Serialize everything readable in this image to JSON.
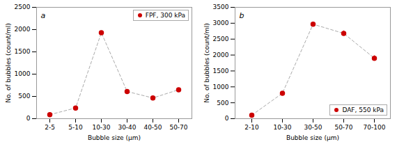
{
  "chart_data": [
    {
      "type": "line",
      "title": "a",
      "categories": [
        "2-5",
        "5-10",
        "10-30",
        "30-40",
        "40-50",
        "50-70"
      ],
      "series": [
        {
          "name": "FPF, 300 kPa",
          "color": "#cc0000",
          "marker": "o",
          "line_style": "dashed",
          "values": [
            90,
            240,
            1930,
            610,
            465,
            650
          ],
          "errors": [
            0,
            0,
            0,
            0,
            0,
            0
          ]
        }
      ],
      "color": "#aaaaaa",
      "xlabel": "Bubble size (μm)",
      "ylabel": "No. of bubbles (count/ml)",
      "ylim": [
        0,
        2500
      ],
      "yticks": [
        0,
        500,
        1000,
        1500,
        2000,
        2500
      ],
      "legend": "upper right"
    },
    {
      "type": "line",
      "title": "b",
      "categories": [
        "2-10",
        "10-30",
        "30-50",
        "50-70",
        "70-100"
      ],
      "series": [
        {
          "name": "DAF, 550 kPa",
          "color": "#cc0000",
          "marker": "o",
          "line_style": "dashed",
          "values": [
            110,
            800,
            2970,
            2680,
            1900
          ],
          "errors": [
            0,
            0,
            0,
            80,
            80
          ]
        }
      ],
      "color": "#aaaaaa",
      "xlabel": "Bubble size (μm)",
      "ylabel": "No. of bubbles (count/ml)",
      "ylim": [
        0,
        3500
      ],
      "yticks": [
        0,
        500,
        1000,
        1500,
        2000,
        2500,
        3000,
        3500
      ],
      "legend": "lower right"
    }
  ]
}
